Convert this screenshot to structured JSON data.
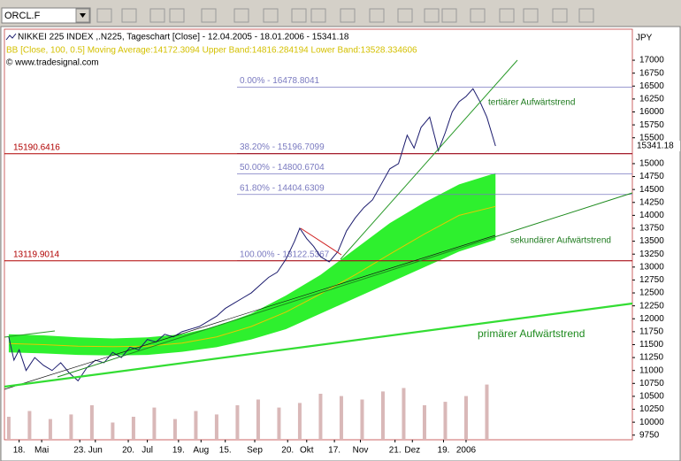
{
  "toolbar": {
    "symbol": "ORCL.F"
  },
  "chart_data": {
    "type": "line",
    "title": "NIKKEI 225 INDEX ,.N225, Tageschart [Close] - 12.04.2005 - 18.01.2006 - 15341.18",
    "subtitle": "BB [Close, 100, 0.5] Moving Average:14172.3094 Upper Band:14816.284194 Lower Band:13528.334606",
    "source": "© www.tradesignal.com",
    "y_unit": "JPY",
    "x": [
      0,
      3,
      6,
      10,
      15,
      20,
      25,
      30,
      35,
      40,
      45,
      50,
      55,
      60,
      65,
      70,
      75,
      80,
      85,
      90,
      95,
      100,
      105,
      110,
      115,
      120,
      125,
      130,
      135,
      140,
      145,
      150,
      155,
      160,
      165,
      168,
      172,
      176,
      180,
      185,
      190,
      195,
      200,
      205,
      210,
      215,
      220,
      225,
      230,
      234,
      238,
      243,
      248,
      252,
      256,
      260,
      264,
      268,
      272,
      276,
      281
    ],
    "series": [
      {
        "color": "#1c1c6e",
        "values": [
          11650,
          11200,
          11400,
          11000,
          11250,
          11100,
          11000,
          11150,
          10950,
          10800,
          11050,
          11200,
          11150,
          11350,
          11250,
          11450,
          11400,
          11600,
          11550,
          11700,
          11650,
          11750,
          11800,
          11850,
          11950,
          12050,
          12200,
          12300,
          12400,
          12500,
          12650,
          12800,
          12900,
          13150,
          13500,
          13750,
          13550,
          13400,
          13200,
          13100,
          13300,
          13700,
          13950,
          14150,
          14300,
          14600,
          14900,
          15000,
          15550,
          15300,
          15700,
          15900,
          15250,
          15600,
          16000,
          16200,
          16300,
          16450,
          16200,
          15900,
          15341.18
        ]
      }
    ],
    "bands": {
      "x": [
        0,
        20,
        40,
        60,
        80,
        100,
        120,
        140,
        160,
        180,
        200,
        220,
        240,
        260,
        281
      ],
      "upper": [
        11700,
        11680,
        11640,
        11620,
        11640,
        11700,
        11850,
        12100,
        12450,
        12850,
        13350,
        13850,
        14250,
        14600,
        14816.28
      ],
      "lower": [
        11350,
        11330,
        11300,
        11290,
        11300,
        11360,
        11450,
        11600,
        11800,
        12100,
        12400,
        12700,
        13000,
        13300,
        13528.33
      ],
      "average": [
        11520,
        11500,
        11470,
        11460,
        11470,
        11530,
        11650,
        11850,
        12130,
        12480,
        12850,
        13250,
        13640,
        14000,
        14172.31
      ],
      "fill": "#2ef02e",
      "average_color": "#e8c800"
    },
    "volume": {
      "x": [
        0,
        12,
        24,
        36,
        48,
        60,
        72,
        84,
        96,
        108,
        120,
        132,
        144,
        156,
        168,
        180,
        192,
        204,
        216,
        228,
        240,
        252,
        264,
        276
      ],
      "values": [
        20,
        25,
        18,
        22,
        30,
        15,
        20,
        28,
        18,
        25,
        22,
        30,
        35,
        28,
        32,
        40,
        38,
        35,
        42,
        45,
        30,
        33,
        38,
        48
      ],
      "color": "#d9b8b8"
    },
    "fibonacci": [
      {
        "value": 16478.8041,
        "label": "0.00% - 16478.8041"
      },
      {
        "value": 15196.7099,
        "label": "38.20% - 15196.7099"
      },
      {
        "value": 14800.6704,
        "label": "50.00% - 14800.6704"
      },
      {
        "value": 14404.6309,
        "label": "61.80% - 14404.6309"
      },
      {
        "value": 13122.5367,
        "label": "100.00% - 13122.5367"
      }
    ],
    "fib_color": "#7a7ac0",
    "horizontal_lines": [
      15190.6416,
      13119.9014
    ],
    "hline_color": "#b00000",
    "trendline_labels": [
      "tertiärer Aufwärtstrend",
      "sekundärer Aufwärtstrend",
      "primärer Aufwärtstrend"
    ],
    "xlim": [
      -2.5,
      360
    ],
    "ylim": [
      9660,
      17600
    ],
    "xticks": [
      {
        "value": 6,
        "label": "18."
      },
      {
        "value": 19,
        "label": "Mai"
      },
      {
        "value": 41,
        "label": "23."
      },
      {
        "value": 50,
        "label": "Jun"
      },
      {
        "value": 69,
        "label": "20."
      },
      {
        "value": 80,
        "label": "Jul"
      },
      {
        "value": 98,
        "label": "19."
      },
      {
        "value": 111,
        "label": "Aug"
      },
      {
        "value": 125,
        "label": "15."
      },
      {
        "value": 142,
        "label": "Sep"
      },
      {
        "value": 161,
        "label": "20."
      },
      {
        "value": 172,
        "label": "Okt"
      },
      {
        "value": 188,
        "label": "17."
      },
      {
        "value": 203,
        "label": "Nov"
      },
      {
        "value": 223,
        "label": "21."
      },
      {
        "value": 233,
        "label": "Dez"
      },
      {
        "value": 251,
        "label": "19."
      },
      {
        "value": 264,
        "label": "2006"
      }
    ],
    "yticks": [
      9750,
      10000,
      10250,
      10500,
      10750,
      11000,
      11250,
      11500,
      11750,
      12000,
      12250,
      12500,
      12750,
      13000,
      13250,
      13500,
      13750,
      14000,
      14250,
      14500,
      14750,
      15000,
      15500,
      15750,
      16000,
      16250,
      16500,
      16750,
      17000
    ]
  }
}
